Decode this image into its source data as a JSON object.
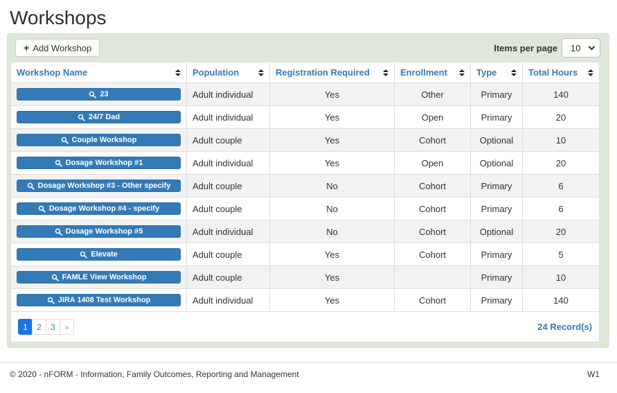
{
  "page": {
    "title": "Workshops"
  },
  "toolbar": {
    "add_button": "Add Workshop",
    "items_per_page_label": "Items per page",
    "items_per_page_value": "10"
  },
  "table": {
    "columns": [
      "Workshop Name",
      "Population",
      "Registration Required",
      "Enrollment",
      "Type",
      "Total Hours"
    ],
    "rows": [
      {
        "name": "23",
        "population": "Adult individual",
        "registration_required": "Yes",
        "enrollment": "Other",
        "type": "Primary",
        "total_hours": "140"
      },
      {
        "name": "24/7 Dad",
        "population": "Adult individual",
        "registration_required": "Yes",
        "enrollment": "Open",
        "type": "Primary",
        "total_hours": "20"
      },
      {
        "name": "Couple Workshop",
        "population": "Adult couple",
        "registration_required": "Yes",
        "enrollment": "Cohort",
        "type": "Optional",
        "total_hours": "10"
      },
      {
        "name": "Dosage Workshop #1",
        "population": "Adult individual",
        "registration_required": "Yes",
        "enrollment": "Open",
        "type": "Optional",
        "total_hours": "20"
      },
      {
        "name": "Dosage Workshop #3 - Other specify",
        "population": "Adult couple",
        "registration_required": "No",
        "enrollment": "Cohort",
        "type": "Primary",
        "total_hours": "6"
      },
      {
        "name": "Dosage Workshop #4 - specify",
        "population": "Adult couple",
        "registration_required": "No",
        "enrollment": "Cohort",
        "type": "Primary",
        "total_hours": "6"
      },
      {
        "name": "Dosage Workshop #5",
        "population": "Adult individual",
        "registration_required": "No",
        "enrollment": "Cohort",
        "type": "Optional",
        "total_hours": "20"
      },
      {
        "name": "Elevate",
        "population": "Adult couple",
        "registration_required": "Yes",
        "enrollment": "Cohort",
        "type": "Primary",
        "total_hours": "5"
      },
      {
        "name": "FAMLE View Workshop",
        "population": "Adult couple",
        "registration_required": "Yes",
        "enrollment": "",
        "type": "Primary",
        "total_hours": "10"
      },
      {
        "name": "JIRA 1408 Test Workshop",
        "population": "Adult individual",
        "registration_required": "Yes",
        "enrollment": "Cohort",
        "type": "Primary",
        "total_hours": "140"
      }
    ]
  },
  "pagination": {
    "pages": [
      "1",
      "2",
      "3"
    ],
    "active_page": "1",
    "next_label": "»",
    "record_count": "24 Record(s)"
  },
  "footer": {
    "copyright": "© 2020 - nFORM - Information, Family Outcomes, Reporting and Management",
    "version": "W1"
  },
  "colors": {
    "panel_green": "#dfe8d8",
    "primary_blue": "#337ab7",
    "active_page_blue": "#1b73e8",
    "stripe_gray": "#f2f2f2"
  }
}
